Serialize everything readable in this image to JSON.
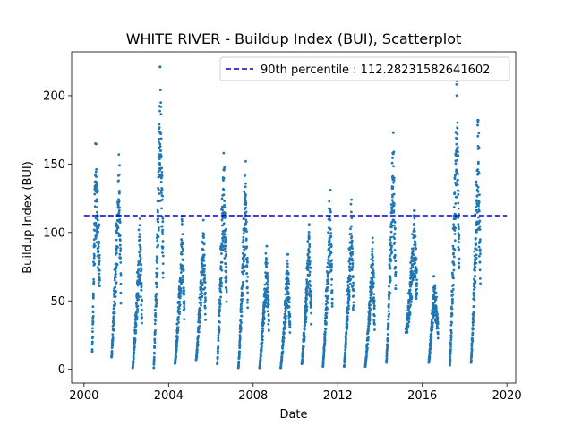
{
  "chart_data": {
    "type": "scatter",
    "title": "WHITE RIVER - Buildup Index (BUI), Scatterplot",
    "xlabel": "Date",
    "ylabel": "Buildup Index (BUI)",
    "xlim": [
      "1999-06-01",
      "2020-06-01"
    ],
    "ylim": [
      -10,
      232
    ],
    "x_ticks": [
      "2000",
      "2004",
      "2008",
      "2012",
      "2016",
      "2020"
    ],
    "y_ticks": [
      0,
      50,
      100,
      150,
      200
    ],
    "grid": false,
    "legend_position": "top-right",
    "reference_line": {
      "label": "90th percentile : 112.28231582641602",
      "value": 112.28231582641602,
      "x_start": "2000-01-01",
      "x_end": "2020-01-01",
      "style": "dashed",
      "color": "#0000cc"
    },
    "series": [
      {
        "marker_color": "#1f77b4",
        "seasons": [
          {
            "year": 2000,
            "start": "2000-05-20",
            "end": "2000-09-30",
            "min": 13,
            "peak": 165,
            "peak_date": "2000-07-15"
          },
          {
            "year": 2001,
            "start": "2001-04-20",
            "end": "2001-09-30",
            "min": 9,
            "peak": 157,
            "peak_date": "2001-08-25"
          },
          {
            "year": 2002,
            "start": "2002-04-20",
            "end": "2002-09-30",
            "min": 1,
            "peak": 110,
            "peak_date": "2002-08-25"
          },
          {
            "year": 2003,
            "start": "2003-04-20",
            "end": "2003-09-30",
            "min": 1,
            "peak": 221,
            "peak_date": "2003-08-10"
          },
          {
            "year": 2004,
            "start": "2004-04-20",
            "end": "2004-09-30",
            "min": 4,
            "peak": 112,
            "peak_date": "2004-08-25"
          },
          {
            "year": 2005,
            "start": "2005-04-20",
            "end": "2005-09-30",
            "min": 7,
            "peak": 109,
            "peak_date": "2005-08-25"
          },
          {
            "year": 2006,
            "start": "2006-04-20",
            "end": "2006-09-30",
            "min": 4,
            "peak": 158,
            "peak_date": "2006-08-10"
          },
          {
            "year": 2007,
            "start": "2007-04-20",
            "end": "2007-09-30",
            "min": 1,
            "peak": 152,
            "peak_date": "2007-08-25"
          },
          {
            "year": 2008,
            "start": "2008-04-20",
            "end": "2008-09-30",
            "min": 1,
            "peak": 90,
            "peak_date": "2008-08-25"
          },
          {
            "year": 2009,
            "start": "2009-04-20",
            "end": "2009-09-30",
            "min": 1,
            "peak": 84,
            "peak_date": "2009-08-25"
          },
          {
            "year": 2010,
            "start": "2010-04-20",
            "end": "2010-09-30",
            "min": 4,
            "peak": 106,
            "peak_date": "2010-08-25"
          },
          {
            "year": 2011,
            "start": "2011-04-20",
            "end": "2011-09-30",
            "min": 2,
            "peak": 131,
            "peak_date": "2011-08-25"
          },
          {
            "year": 2012,
            "start": "2012-04-20",
            "end": "2012-09-30",
            "min": 2,
            "peak": 124,
            "peak_date": "2012-08-25"
          },
          {
            "year": 2013,
            "start": "2013-04-20",
            "end": "2013-09-30",
            "min": 2,
            "peak": 96,
            "peak_date": "2013-08-25"
          },
          {
            "year": 2014,
            "start": "2014-04-20",
            "end": "2014-09-30",
            "min": 5,
            "peak": 173,
            "peak_date": "2014-08-15"
          },
          {
            "year": 2015,
            "start": "2015-03-20",
            "end": "2015-09-30",
            "min": 27,
            "peak": 116,
            "peak_date": "2015-08-20"
          },
          {
            "year": 2016,
            "start": "2016-04-20",
            "end": "2016-09-30",
            "min": 5,
            "peak": 68,
            "peak_date": "2016-07-20"
          },
          {
            "year": 2017,
            "start": "2017-04-20",
            "end": "2017-09-30",
            "min": 3,
            "peak": 211,
            "peak_date": "2017-08-20"
          },
          {
            "year": 2018,
            "start": "2018-04-20",
            "end": "2018-09-30",
            "min": 5,
            "peak": 182,
            "peak_date": "2018-08-25"
          }
        ]
      }
    ]
  }
}
